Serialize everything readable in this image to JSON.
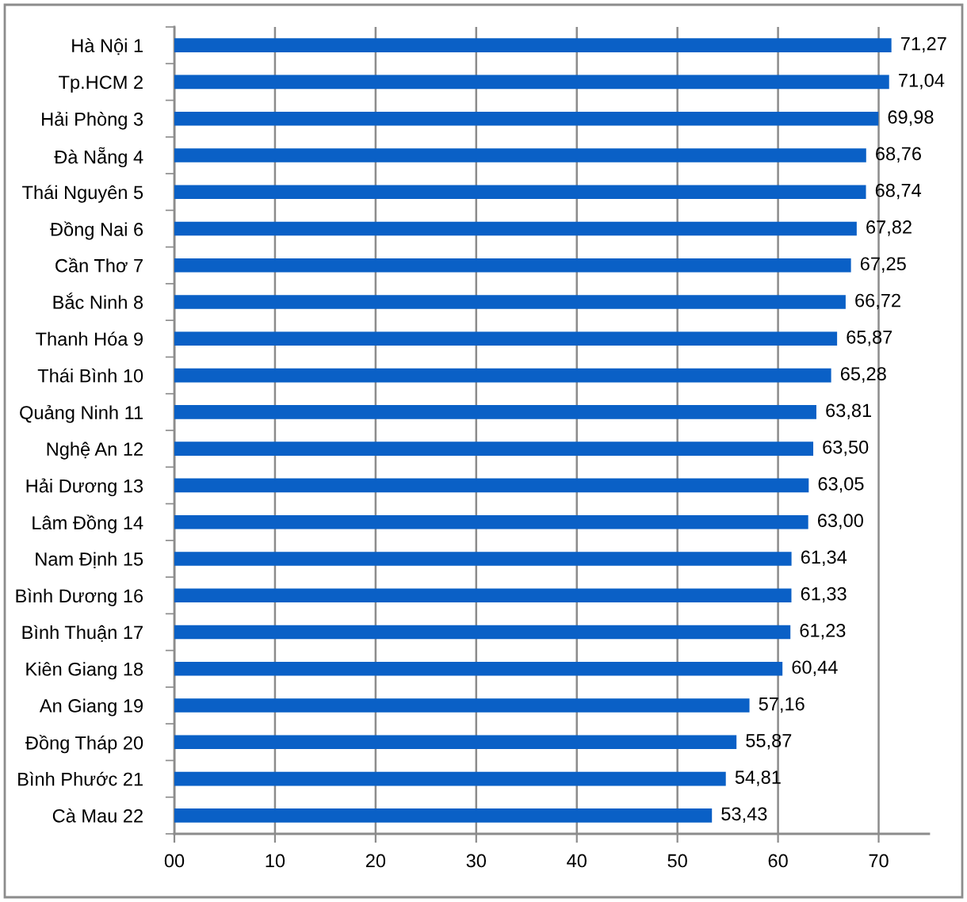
{
  "chart_data": {
    "type": "bar",
    "orientation": "horizontal",
    "categories": [
      "Hà Nội 1",
      "Tp.HCM 2",
      "Hải Phòng 3",
      "Đà Nẵng 4",
      "Thái Nguyên 5",
      "Đồng Nai 6",
      "Cần Thơ 7",
      "Bắc Ninh 8",
      "Thanh Hóa 9",
      "Thái Bình 10",
      "Quảng Ninh 11",
      "Nghệ An 12",
      "Hải Dương 13",
      "Lâm Đồng 14",
      "Nam Định 15",
      "Bình Dương 16",
      "Bình Thuận 17",
      "Kiên Giang 18",
      "An Giang 19",
      "Đồng Tháp 20",
      "Bình Phước 21",
      "Cà Mau 22"
    ],
    "values": [
      71.27,
      71.04,
      69.98,
      68.76,
      68.74,
      67.82,
      67.25,
      66.72,
      65.87,
      65.28,
      63.81,
      63.5,
      63.05,
      63.0,
      61.34,
      61.33,
      61.23,
      60.44,
      57.16,
      55.87,
      54.81,
      53.43
    ],
    "value_labels": [
      "71,27",
      "71,04",
      "69,98",
      "68,76",
      "68,74",
      "67,82",
      "67,25",
      "66,72",
      "65,87",
      "65,28",
      "63,81",
      "63,50",
      "63,05",
      "63,00",
      "61,34",
      "61,33",
      "61,23",
      "60,44",
      "57,16",
      "55,87",
      "54,81",
      "53,43"
    ],
    "color": "#0a60c6",
    "xlim": [
      0,
      75
    ],
    "xticks": [
      {
        "value": 0,
        "label": "00"
      },
      10,
      20,
      30,
      40,
      50,
      60,
      70
    ],
    "grid": "x",
    "legend": false
  }
}
